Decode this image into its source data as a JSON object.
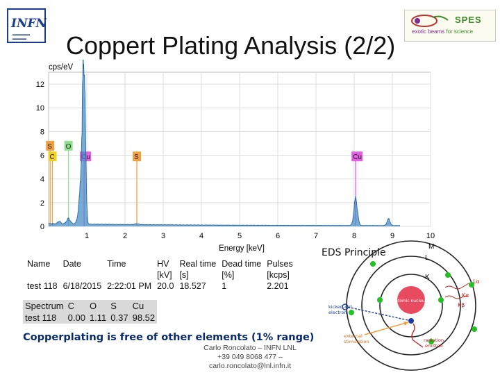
{
  "title": "Coppert Plating Analysis (2/2)",
  "logos": {
    "infn_text": "INFN",
    "spes_text": "SPES",
    "spes_tagline_a": "exotic beams",
    "spes_tagline_b": "for science"
  },
  "chart_data": {
    "type": "line",
    "title": "",
    "ylabel": "cps/eV",
    "xlabel": "Energy [keV]",
    "xlim": [
      0,
      10
    ],
    "ylim": [
      0,
      13
    ],
    "xticks": [
      1,
      2,
      3,
      4,
      5,
      6,
      7,
      8,
      9,
      10
    ],
    "yticks": [
      0,
      2,
      4,
      6,
      8,
      10,
      12
    ],
    "grid": true,
    "fill_color": "#4a8fc6",
    "line_color": "#1a5fa0",
    "peaks": [
      {
        "x": 0.93,
        "y": 13.2,
        "width": 0.035
      },
      {
        "x": 0.88,
        "y": 4.0,
        "width": 0.04
      },
      {
        "x": 0.82,
        "y": 1.6,
        "width": 0.05
      },
      {
        "x": 0.52,
        "y": 0.45,
        "width": 0.05
      },
      {
        "x": 0.28,
        "y": 0.2,
        "width": 0.04
      },
      {
        "x": 8.04,
        "y": 2.3,
        "width": 0.045
      },
      {
        "x": 8.9,
        "y": 0.55,
        "width": 0.04
      },
      {
        "x": 2.31,
        "y": 0.08,
        "width": 0.05
      }
    ],
    "markers": [
      {
        "label": "S",
        "x": 0.04,
        "row": 1,
        "color": "#f0a040",
        "line": "#f0a040",
        "y": 6.8
      },
      {
        "label": "O",
        "x": 0.52,
        "row": 1,
        "color": "#90e090",
        "line": "#90e090",
        "y": 6.8
      },
      {
        "label": "C",
        "x": 0.1,
        "row": 2,
        "color": "#f0d020",
        "line": "#f0a040",
        "y": 5.9
      },
      {
        "label": "Cu",
        "x": 0.93,
        "row": 2,
        "color": "#e060e0",
        "line": "#e060e0",
        "y": 5.9
      },
      {
        "label": "S",
        "x": 2.31,
        "row": 2,
        "color": "#f0a040",
        "line": "#f0a040",
        "y": 5.9
      },
      {
        "label": "Cu",
        "x": 8.04,
        "row": 2,
        "color": "#e060e0",
        "line": "#e060e0",
        "y": 5.9
      }
    ]
  },
  "eds_label": "EDS Principle",
  "info_table": {
    "headers": [
      "Name",
      "Date",
      "Time",
      "HV",
      "Real time",
      "Dead time",
      "Pulses"
    ],
    "units": [
      "",
      "",
      "",
      "[kV]",
      "[s]",
      "[%]",
      "[kcps]"
    ],
    "row": [
      "test 118",
      "6/18/2015",
      "2:22:01 PM",
      "20.0",
      "18.527",
      "1",
      "2.201"
    ]
  },
  "composition_table": {
    "headers": [
      "Spectrum",
      "C",
      "O",
      "S",
      "Cu"
    ],
    "row": [
      "test 118",
      "0.00",
      "1.11",
      "0.37",
      "98.52"
    ]
  },
  "conclusion": "Copperplating is free of other elements (1% range)",
  "footer": {
    "line1": "Carlo Roncolato – INFN LNL",
    "line2": "+39 049 8068 477 –",
    "line3": "carlo.roncolato@lnl.infn.it"
  },
  "atom_diagram": {
    "shell_m": "M",
    "shell_l": "L",
    "shell_k": "K",
    "nucleus": "atomic nucleus",
    "kicked_a": "kicked-out",
    "kicked_b": "electron",
    "external_a": "external",
    "external_b": "stimulation",
    "radiation_a": "radiation",
    "radiation_b": "emitted",
    "la": "Lα",
    "ka": "Kα",
    "kb": "Kβ",
    "shell_color": "#222",
    "electron_color": "#22c022",
    "hole_color": "#1a3da0",
    "nucleus_color": "#e84a5f"
  }
}
